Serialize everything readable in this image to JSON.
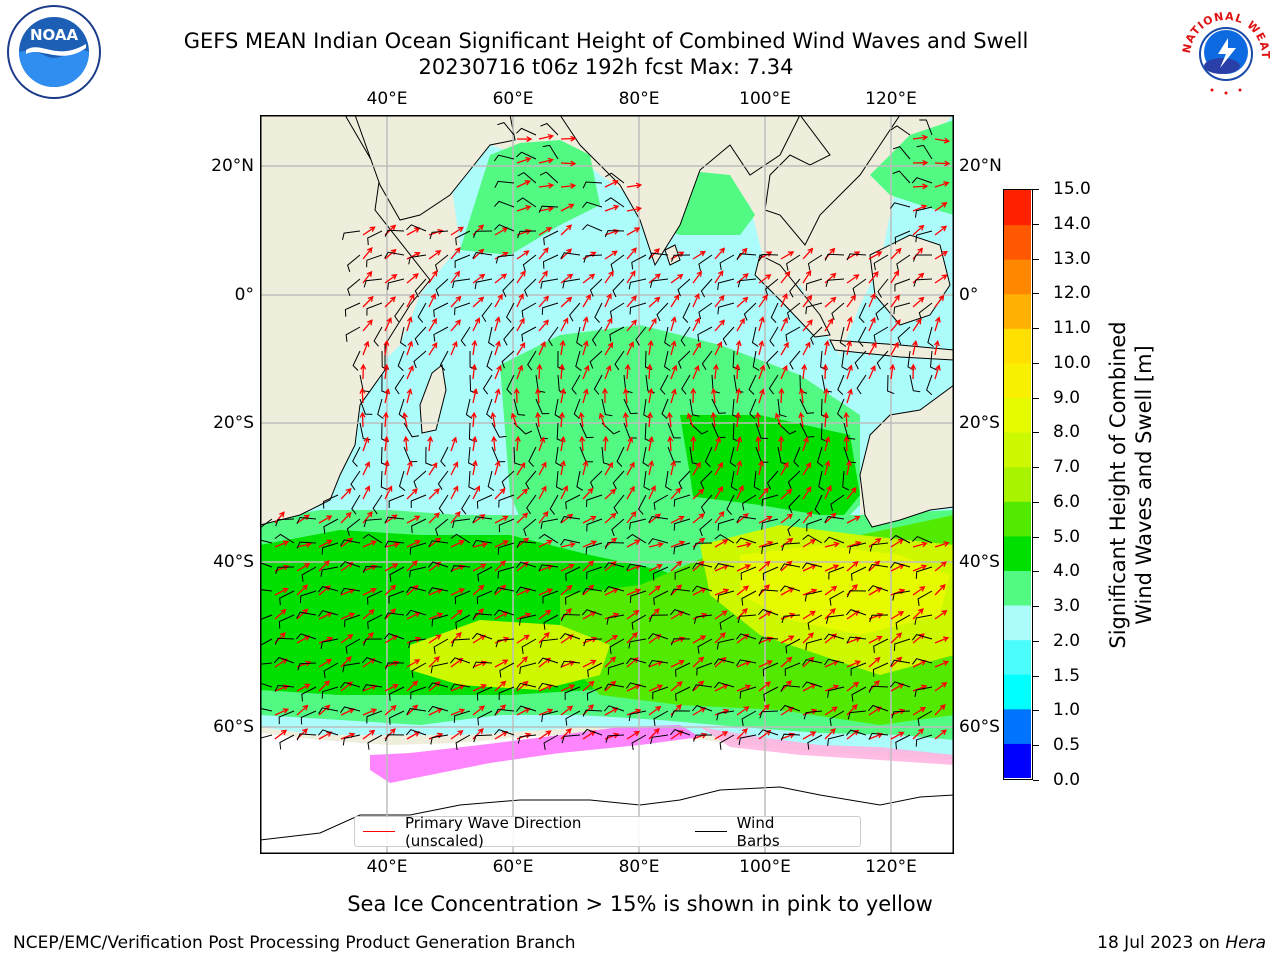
{
  "header": {
    "title_line1": "GEFS MEAN Indian Ocean Significant Height of Combined Wind Waves and Swell",
    "title_line2": "20230716 t06z 192h fcst   Max: 7.34"
  },
  "logos": {
    "left": {
      "name": "NOAA",
      "text": "NOAA",
      "ring_text": "NATIONAL OCEANIC AND ATMOSPHERIC ADMINISTRATION · U.S. DEPARTMENT OF COMMERCE"
    },
    "right": {
      "name": "National Weather Service",
      "ring_text": "NATIONAL WEATHER SERVICE"
    }
  },
  "map": {
    "lon_labels": [
      "40°E",
      "60°E",
      "80°E",
      "100°E",
      "120°E"
    ],
    "lat_labels": [
      "20°N",
      "0°",
      "20°S",
      "40°S",
      "60°S"
    ],
    "extent": {
      "lon_min": 20,
      "lon_max": 130,
      "lat_min": -74,
      "lat_max": 28
    },
    "colors": {
      "land": "#efeedd",
      "ocean_base": "#adfcfc",
      "ice": "#ff70ff",
      "arrow": "#ff0000",
      "barb": "#000000"
    }
  },
  "colorbar": {
    "title": "Significant Height of Combined Wind Waves and Swell [m]",
    "title_line1": "Significant Height of Combined",
    "title_line2": "Wind Waves and Swell [m]",
    "levels": [
      0.0,
      0.5,
      1.0,
      1.5,
      2.0,
      3.0,
      4.0,
      5.0,
      6.0,
      7.0,
      8.0,
      9.0,
      10.0,
      11.0,
      12.0,
      13.0,
      14.0,
      15.0
    ],
    "tick_labels": [
      "0.0",
      "0.5",
      "1.0",
      "1.5",
      "2.0",
      "3.0",
      "4.0",
      "5.0",
      "6.0",
      "7.0",
      "8.0",
      "9.0",
      "10.0",
      "11.0",
      "12.0",
      "13.0",
      "14.0",
      "15.0"
    ],
    "colors": [
      "#0000ff",
      "#0073ff",
      "#00ffff",
      "#4afcfc",
      "#adfcfc",
      "#52fa84",
      "#00e000",
      "#52ea00",
      "#a8f400",
      "#ccf800",
      "#e6fa00",
      "#f8f000",
      "#ffe000",
      "#ffb000",
      "#ff8800",
      "#ff5800",
      "#ff2000"
    ]
  },
  "legend": {
    "items": [
      {
        "label": "Primary Wave Direction (unscaled)",
        "color": "#ff0000"
      },
      {
        "label": "Wind Barbs",
        "color": "#000000"
      }
    ]
  },
  "footer": {
    "caption": "Sea Ice Concentration > 15% is shown in pink to yellow",
    "left": "NCEP/EMC/Verification Post Processing Product Generation Branch",
    "right_date": "18 Jul 2023 on ",
    "right_machine": "Hera"
  }
}
